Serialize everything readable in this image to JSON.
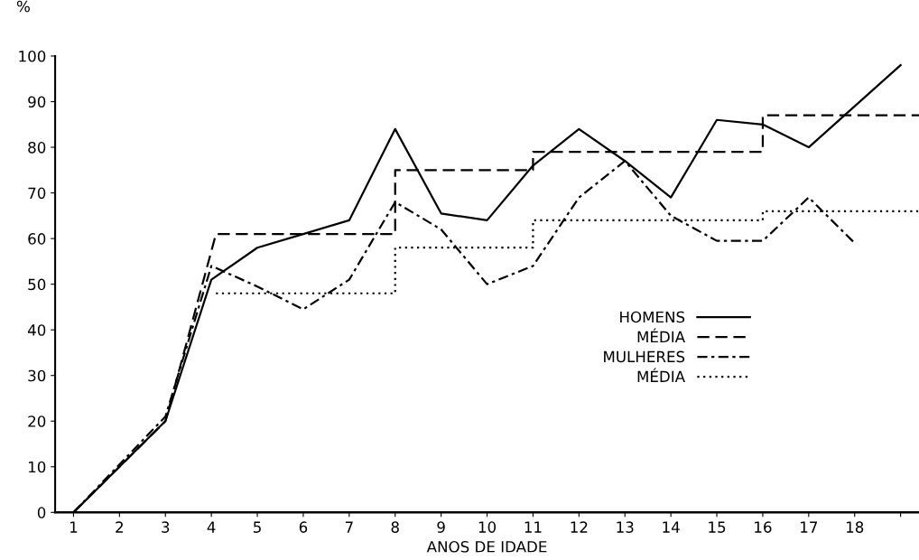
{
  "chart_data": {
    "type": "line",
    "xlabel": "ANOS DE IDADE",
    "ylabel": "%",
    "xlim": [
      0.6,
      19.4
    ],
    "xticks": [
      1,
      2,
      3,
      4,
      5,
      6,
      7,
      8,
      9,
      10,
      11,
      12,
      13,
      14,
      15,
      16,
      17,
      18,
      {
        "value": 19,
        "label": null
      }
    ],
    "ylim": [
      0,
      100
    ],
    "yticks": [
      0,
      10,
      20,
      30,
      40,
      50,
      60,
      70,
      80,
      90,
      100
    ],
    "grid": false,
    "legend": "right",
    "marker": "none",
    "series": [
      {
        "name": "HOMENS",
        "color": "#000000",
        "line_style": "solid",
        "x": [
          1,
          2,
          3,
          4,
          5,
          6,
          7,
          8,
          9,
          10,
          11,
          12,
          13,
          14,
          15,
          16,
          17,
          19
        ],
        "values": [
          0,
          10,
          20,
          51,
          58,
          61,
          64,
          84,
          65.5,
          64,
          76,
          84,
          77,
          69,
          86,
          85,
          80,
          98
        ]
      },
      {
        "name": "MÉDIA",
        "color": "#000000",
        "line_style": "dashed",
        "x": [
          1,
          3,
          4.1,
          8,
          8,
          11,
          11,
          16,
          16,
          19.4
        ],
        "values": [
          0,
          20,
          61,
          61,
          75,
          75,
          79,
          79,
          87,
          87
        ]
      },
      {
        "name": "MULHERES",
        "color": "#000000",
        "line_style": "dashdot",
        "x": [
          1,
          2,
          3,
          4,
          5,
          6,
          7,
          8,
          9,
          10,
          11,
          12,
          13,
          14,
          15,
          16,
          17,
          18
        ],
        "values": [
          0,
          10.5,
          21,
          54,
          49.5,
          44.5,
          51,
          68,
          62,
          50,
          54,
          69,
          77,
          65,
          59.5,
          59.5,
          69,
          59
        ]
      },
      {
        "name": "MÉDIA",
        "color": "#000000",
        "line_style": "dotted",
        "x": [
          4.1,
          8,
          8,
          11,
          11,
          16,
          16,
          19.4
        ],
        "values": [
          48,
          48,
          58,
          58,
          64,
          64,
          66,
          66
        ]
      }
    ]
  }
}
